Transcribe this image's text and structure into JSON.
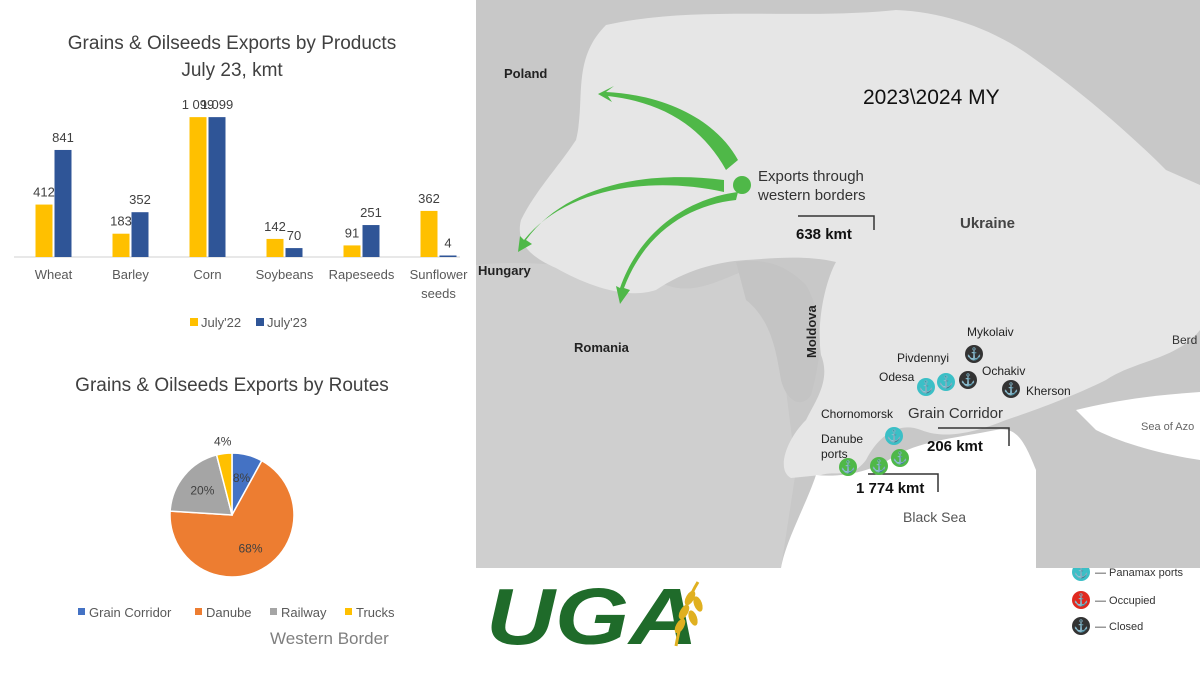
{
  "bar_chart": {
    "title_line1": "Grains & Oilseeds Exports by Products",
    "title_line2": "July 23, kmt",
    "legend": [
      {
        "label": "July'22",
        "color": "#FFC000"
      },
      {
        "label": "July'23",
        "color": "#2F5597"
      }
    ]
  },
  "pie_chart": {
    "title": "Grains & Oilseeds Exports by Routes",
    "note": "Western Border"
  },
  "map": {
    "season_label": "2023\\2024 MY",
    "western_label_line1": "Exports through",
    "western_label_line2": "western borders",
    "western_volume": "638 kmt",
    "corridor_label": "Grain Corridor",
    "corridor_volume": "206 kmt",
    "danube_volume": "1 774 kmt",
    "countries": {
      "poland": "Poland",
      "hungary": "Hungary",
      "romania": "Romania",
      "moldova": "Moldova",
      "ukraine": "Ukraine",
      "berdiansk": "Berd"
    },
    "seas": {
      "black_sea": "Black Sea",
      "azov": "Sea of Azo"
    },
    "ports": {
      "mykolaiv": "Mykolaiv",
      "pivdennyi": "Pivdennyi",
      "odesa": "Odesa",
      "ochakiv": "Ochakiv",
      "kherson": "Kherson",
      "chornomorsk": "Chornomorsk",
      "danube_line1": "Danube",
      "danube_line2": "ports"
    },
    "legend": [
      {
        "label": "— Panamax ports",
        "color": "#3bbfc6"
      },
      {
        "label": "— Occupied",
        "color": "#e0291f"
      },
      {
        "label": "— Closed",
        "color": "#333333"
      }
    ],
    "colors": {
      "land": "#e6e6e6",
      "neighbors": "#c8c8c8",
      "arrows": "#4fb848",
      "danube_ports": "#4fb848"
    }
  },
  "logo": {
    "text": "UGA",
    "color": "#1f6b2a"
  },
  "chart_data": [
    {
      "type": "bar",
      "title": "Grains & Oilseeds Exports by Products",
      "subtitle": "July 23, kmt",
      "categories": [
        "Wheat",
        "Barley",
        "Corn",
        "Soybeans",
        "Rapeseeds",
        "Sunflower seeds"
      ],
      "category_lines": [
        [
          "Wheat"
        ],
        [
          "Barley"
        ],
        [
          "Corn"
        ],
        [
          "Soybeans"
        ],
        [
          "Rapeseeds"
        ],
        [
          "Sunflower",
          "seeds"
        ]
      ],
      "series": [
        {
          "name": "July'22",
          "color": "#FFC000",
          "values": [
            412,
            183,
            1099,
            142,
            91,
            362
          ],
          "labels": [
            "412",
            "183",
            "1 099",
            "142",
            "91",
            "362"
          ]
        },
        {
          "name": "July'23",
          "color": "#2F5597",
          "values": [
            841,
            352,
            1099,
            70,
            251,
            4
          ],
          "labels": [
            "841",
            "352",
            "1 099",
            "70",
            "251",
            "4"
          ]
        }
      ],
      "ylim": [
        0,
        1100
      ],
      "legend_position": "bottom",
      "grid": false
    },
    {
      "type": "pie",
      "title": "Grains & Oilseeds Exports by Routes",
      "slices": [
        {
          "label": "Grain Corridor",
          "value": 8,
          "text": "8%",
          "color": "#4472C4"
        },
        {
          "label": "Danube",
          "value": 68,
          "text": "68%",
          "color": "#ED7D31"
        },
        {
          "label": "Railway",
          "value": 20,
          "text": "20%",
          "color": "#A5A5A5"
        },
        {
          "label": "Trucks",
          "value": 4,
          "text": "4%",
          "color": "#FFC000"
        }
      ],
      "legend_position": "bottom"
    }
  ]
}
